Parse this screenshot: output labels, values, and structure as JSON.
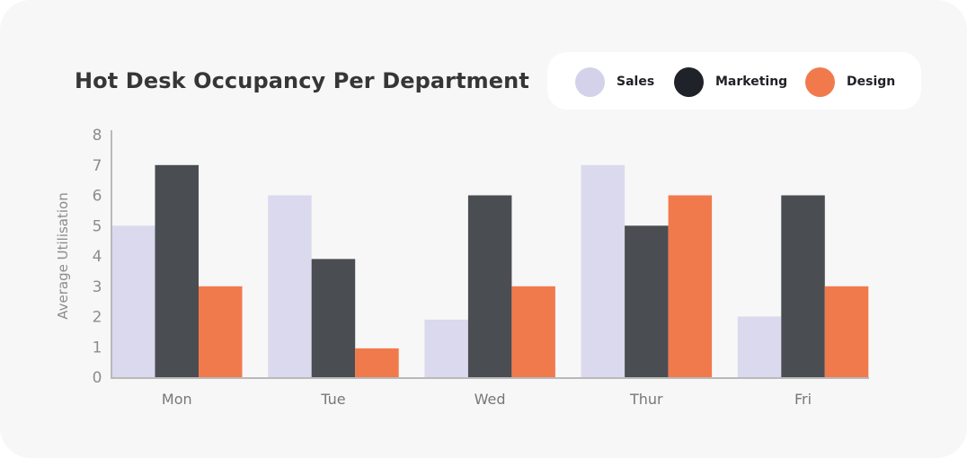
{
  "chart_data": {
    "type": "bar",
    "title": "Hot Desk Occupancy Per Department",
    "xlabel": "",
    "ylabel": "Average Utilisation",
    "ylim": [
      0,
      8
    ],
    "yticks": [
      "0",
      "1",
      "2",
      "3",
      "4",
      "5",
      "6",
      "7",
      "8"
    ],
    "categories": [
      "Mon",
      "Tue",
      "Wed",
      "Thur",
      "Fri"
    ],
    "series": [
      {
        "name": "Sales",
        "color": "#dbd9ed",
        "values": [
          5,
          6,
          1.9,
          7,
          2
        ]
      },
      {
        "name": "Marketing",
        "color": "#4a4d52",
        "values": [
          7,
          3.9,
          6,
          5,
          6
        ]
      },
      {
        "name": "Design",
        "color": "#f17a4d",
        "values": [
          3,
          0.95,
          3,
          6,
          3
        ]
      }
    ],
    "legend": {
      "placement": "top-right",
      "items": [
        {
          "label": "Sales",
          "color": "#d3d2ea"
        },
        {
          "label": "Marketing",
          "color": "#1f2229"
        },
        {
          "label": "Design",
          "color": "#f17a4d"
        }
      ]
    },
    "grid": false
  }
}
